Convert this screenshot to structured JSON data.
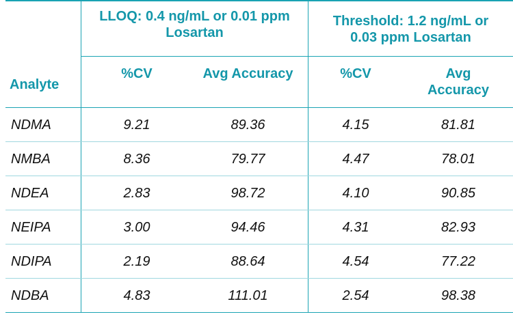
{
  "colors": {
    "header_text": "#1497aa",
    "divider": "#1aa3b3",
    "row_divider": "#9fd7df",
    "body_text": "#111111"
  },
  "header": {
    "group_lloq": {
      "line1": "LLOQ: 0.4 ng/mL or 0.01 ppm",
      "line2": "Losartan"
    },
    "group_threshold": {
      "line1": "Threshold: 1.2 ng/mL or",
      "line2": "0.03 ppm Losartan"
    },
    "analyte_label": "Analyte",
    "cv_label": "%CV",
    "avg_accuracy_label": "Avg Accuracy",
    "avg_label": "Avg",
    "accuracy_label": "Accuracy"
  },
  "rows": [
    {
      "analyte": "NDMA",
      "lloq_cv": "9.21",
      "lloq_acc": "89.36",
      "thr_cv": "4.15",
      "thr_acc": "81.81"
    },
    {
      "analyte": "NMBA",
      "lloq_cv": "8.36",
      "lloq_acc": "79.77",
      "thr_cv": "4.47",
      "thr_acc": "78.01"
    },
    {
      "analyte": "NDEA",
      "lloq_cv": "2.83",
      "lloq_acc": "98.72",
      "thr_cv": "4.10",
      "thr_acc": "90.85"
    },
    {
      "analyte": "NEIPA",
      "lloq_cv": "3.00",
      "lloq_acc": "94.46",
      "thr_cv": "4.31",
      "thr_acc": "82.93"
    },
    {
      "analyte": "NDIPA",
      "lloq_cv": "2.19",
      "lloq_acc": "88.64",
      "thr_cv": "4.54",
      "thr_acc": "77.22"
    },
    {
      "analyte": "NDBA",
      "lloq_cv": "4.83",
      "lloq_acc": "111.01",
      "thr_cv": "2.54",
      "thr_acc": "98.38"
    }
  ]
}
